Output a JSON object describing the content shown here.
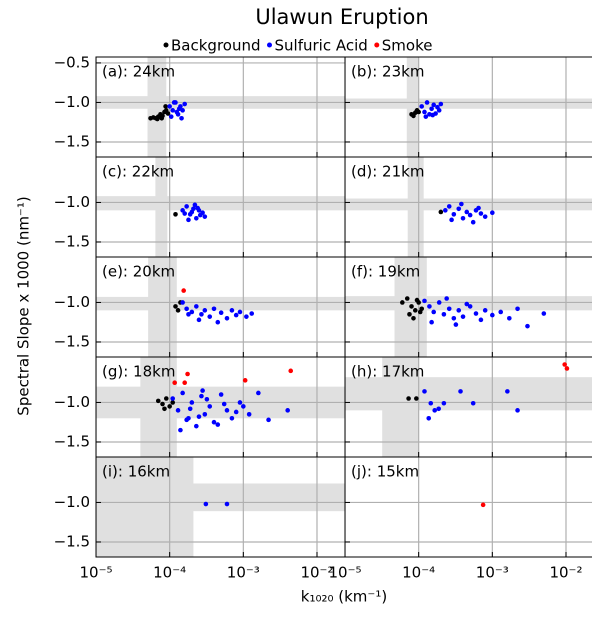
{
  "chart_data": {
    "type": "scatter",
    "title": "Ulawun Eruption",
    "xlabel": "k₁₀₂₀ (km⁻¹)",
    "ylabel": "Spectral Slope x 1000 (nm⁻¹)",
    "log_x": true,
    "grid": true,
    "xlim": [
      1e-05,
      0.024
    ],
    "xticks": [
      {
        "value": 1e-05,
        "label": "10⁻⁵"
      },
      {
        "value": 0.0001,
        "label": "10⁻⁴"
      },
      {
        "value": 0.001,
        "label": "10⁻³"
      },
      {
        "value": 0.01,
        "label": "10⁻²"
      }
    ],
    "ylim": [
      -1.69,
      -0.425
    ],
    "series": [
      {
        "name": "Background",
        "color": "#000000"
      },
      {
        "name": "Sulfuric Acid",
        "color": "#0000ff"
      },
      {
        "name": "Smoke",
        "color": "#ff0000"
      }
    ],
    "panels": [
      {
        "label": "(a): 24km",
        "yticks": [
          {
            "value": -0.5,
            "label": "−0.5"
          },
          {
            "value": -1.0,
            "label": "−1.0"
          },
          {
            "value": -1.5,
            "label": "−1.5"
          }
        ],
        "band_x": [
          5e-05,
          9e-05
        ],
        "band_y": [
          -0.92,
          -1.08
        ],
        "points": [
          {
            "x": [
              5.5e-05,
              6e-05,
              6.5e-05,
              7e-05,
              7.5e-05,
              8e-05,
              8.5e-05,
              9e-05,
              6.8e-05,
              7.8e-05,
              8.8e-05,
              9.5e-05
            ],
            "values": [
              -1.2,
              -1.19,
              -1.2,
              -1.18,
              -1.15,
              -1.17,
              -1.12,
              -1.1,
              -1.21,
              -1.2,
              -1.05,
              -1.14
            ]
          },
          {
            "x": [
              0.0001,
              0.00011,
              0.00012,
              0.00013,
              0.00014,
              0.00015,
              0.00016,
              0.000105,
              0.000125,
              0.000145,
              0.000115,
              0.000135
            ],
            "values": [
              -1.05,
              -1.1,
              -1.0,
              -1.15,
              -1.05,
              -1.1,
              -1.02,
              -1.18,
              -1.12,
              -1.2,
              -1.0,
              -1.08
            ]
          },
          {
            "x": [],
            "values": []
          }
        ]
      },
      {
        "label": "(b): 23km",
        "yticks": [
          {
            "value": -1.0,
            "label": "−1.0"
          },
          {
            "value": -1.5,
            "label": "−1.5"
          }
        ],
        "band_x": [
          6.9e-05,
          0.0001
        ],
        "band_y": [
          -0.95,
          -1.08
        ],
        "points": [
          {
            "x": [
              8e-05,
              8.5e-05,
              9e-05,
              9.5e-05,
              0.0001
            ],
            "values": [
              -1.15,
              -1.17,
              -1.13,
              -1.1,
              -1.12
            ]
          },
          {
            "x": [
              0.00011,
              0.00012,
              0.00013,
              0.00014,
              0.00015,
              0.00016,
              0.00017,
              0.00018,
              0.00019,
              0.0002,
              0.000125,
              0.000155
            ],
            "values": [
              -1.05,
              -1.12,
              -1.0,
              -1.15,
              -1.08,
              -1.03,
              -1.14,
              -1.06,
              -1.1,
              -1.02,
              -1.18,
              -1.16
            ]
          },
          {
            "x": [],
            "values": []
          }
        ]
      },
      {
        "label": "(c): 22km",
        "yticks": [
          {
            "value": -1.0,
            "label": "−1.0"
          },
          {
            "value": -1.5,
            "label": "−1.5"
          }
        ],
        "band_x": [
          6.4e-05,
          9.3e-05
        ],
        "band_y": [
          -0.92,
          -1.1
        ],
        "points": [
          {
            "x": [
              0.00012
            ],
            "values": [
              -1.15
            ]
          },
          {
            "x": [
              0.00015,
              0.00017,
              0.00019,
              0.00021,
              0.00023,
              0.00025,
              0.00028,
              0.0003,
              0.00018,
              0.00022,
              0.00026,
              0.00016,
              0.0002,
              0.00024
            ],
            "values": [
              -1.1,
              -1.05,
              -1.15,
              -1.08,
              -1.2,
              -1.1,
              -1.13,
              -1.18,
              -1.22,
              -1.03,
              -1.16,
              -1.14,
              -1.12,
              -1.07
            ]
          },
          {
            "x": [],
            "values": []
          }
        ]
      },
      {
        "label": "(d): 21km",
        "yticks": [
          {
            "value": -1.0,
            "label": "−1.0"
          },
          {
            "value": -1.5,
            "label": "−1.5"
          }
        ],
        "band_x": [
          7.1e-05,
          0.000117
        ],
        "band_y": [
          -0.95,
          -1.1
        ],
        "points": [
          {
            "x": [
              0.0002
            ],
            "values": [
              -1.12
            ]
          },
          {
            "x": [
              0.00023,
              0.00026,
              0.0003,
              0.00035,
              0.0004,
              0.00045,
              0.0005,
              0.0006,
              0.0007,
              0.0008,
              0.001,
              0.00028,
              0.00038,
              0.00055,
              0.00065
            ],
            "values": [
              -1.1,
              -1.05,
              -1.15,
              -1.08,
              -1.2,
              -1.12,
              -1.16,
              -1.1,
              -1.14,
              -1.18,
              -1.13,
              -1.22,
              -1.02,
              -1.25,
              -1.07
            ]
          },
          {
            "x": [],
            "values": []
          }
        ]
      },
      {
        "label": "(e): 20km",
        "yticks": [
          {
            "value": -1.0,
            "label": "−1.0"
          },
          {
            "value": -1.5,
            "label": "−1.5"
          }
        ],
        "band_x": [
          5.1e-05,
          0.000125
        ],
        "band_y": [
          -0.93,
          -1.1
        ],
        "points": [
          {
            "x": [
              0.00012,
              0.00013,
              0.00014
            ],
            "values": [
              -1.05,
              -1.1,
              -1.0
            ]
          },
          {
            "x": [
              0.00015,
              0.00017,
              0.0002,
              0.00023,
              0.00027,
              0.0003,
              0.00035,
              0.0004,
              0.0005,
              0.0006,
              0.0007,
              0.0008,
              0.0009,
              0.0011,
              0.0013,
              0.00025,
              0.00045,
              0.00018
            ],
            "values": [
              -1.0,
              -1.08,
              -1.12,
              -1.05,
              -1.15,
              -1.1,
              -1.18,
              -1.08,
              -1.13,
              -1.2,
              -1.1,
              -1.16,
              -1.12,
              -1.18,
              -1.14,
              -1.22,
              -1.25,
              -1.15
            ]
          },
          {
            "x": [
              0.000155
            ],
            "values": [
              -0.85
            ]
          }
        ]
      },
      {
        "label": "(f): 19km",
        "yticks": [
          {
            "value": -1.0,
            "label": "−1.0"
          },
          {
            "value": -1.5,
            "label": "−1.5"
          }
        ],
        "band_x": [
          4.7e-05,
          0.000129
        ],
        "band_y": [
          -0.92,
          -1.1
        ],
        "points": [
          {
            "x": [
              6e-05,
              7e-05,
              8e-05,
              9e-05,
              0.0001,
              0.00011,
              7.5e-05,
              8.5e-05,
              9.5e-05,
              0.000105
            ],
            "values": [
              -1.0,
              -0.95,
              -1.05,
              -1.1,
              -1.0,
              -1.08,
              -1.15,
              -1.2,
              -0.97,
              -1.12
            ]
          },
          {
            "x": [
              0.00012,
              0.00014,
              0.00016,
              0.00019,
              0.00022,
              0.00026,
              0.0003,
              0.00035,
              0.0004,
              0.0005,
              0.0006,
              0.0007,
              0.0008,
              0.001,
              0.0013,
              0.0017,
              0.0022,
              0.003,
              0.005,
              0.00015,
              0.00024,
              0.00032,
              0.00045
            ],
            "values": [
              -0.98,
              -1.05,
              -1.12,
              -1.0,
              -1.15,
              -1.08,
              -1.2,
              -1.1,
              -1.18,
              -1.05,
              -1.14,
              -1.22,
              -1.1,
              -1.16,
              -1.12,
              -1.2,
              -1.08,
              -1.3,
              -1.14,
              -1.25,
              -0.95,
              -1.28,
              -1.02
            ]
          },
          {
            "x": [],
            "values": []
          }
        ]
      },
      {
        "label": "(g): 18km",
        "yticks": [
          {
            "value": -1.0,
            "label": "−1.0"
          },
          {
            "value": -1.5,
            "label": "−1.5"
          }
        ],
        "band_x": [
          4e-05,
          0.000125
        ],
        "band_y": [
          -0.8,
          -1.2
        ],
        "points": [
          {
            "x": [
              7e-05,
              8e-05,
              9e-05,
              0.0001,
              0.00011,
              8.5e-05
            ],
            "values": [
              -0.98,
              -1.02,
              -0.95,
              -1.05,
              -1.0,
              -1.08
            ]
          },
          {
            "x": [
              0.00011,
              0.00013,
              0.00015,
              0.00018,
              0.0002,
              0.00023,
              0.00027,
              0.0003,
              0.00035,
              0.0004,
              0.0005,
              0.0006,
              0.0007,
              0.0009,
              0.0012,
              0.0016,
              0.0022,
              0.004,
              0.00014,
              0.00019,
              0.00025,
              0.00032,
              0.00045,
              0.00055,
              0.0008,
              0.001,
              0.00017,
              0.00028
            ],
            "values": [
              -0.95,
              -1.1,
              -0.88,
              -1.2,
              -1.0,
              -1.3,
              -0.92,
              -1.15,
              -1.05,
              -1.25,
              -0.9,
              -1.1,
              -1.2,
              -1.0,
              -1.15,
              -0.88,
              -1.22,
              -1.1,
              -1.35,
              -1.08,
              -1.18,
              -0.96,
              -1.28,
              -1.02,
              -1.12,
              -1.05,
              -1.22,
              -0.85
            ]
          },
          {
            "x": [
              0.000117,
              0.00016,
              0.000175,
              0.00106,
              0.0044
            ],
            "values": [
              -0.75,
              -0.75,
              -0.64,
              -0.72,
              -0.6
            ]
          }
        ]
      },
      {
        "label": "(h): 17km",
        "yticks": [
          {
            "value": -1.0,
            "label": "−1.0"
          },
          {
            "value": -1.5,
            "label": "−1.5"
          }
        ],
        "band_x": [
          3.2e-05,
          0.0001
        ],
        "band_y": [
          -0.68,
          -1.1
        ],
        "points": [
          {
            "x": [
              7.3e-05,
              9.3e-05
            ],
            "values": [
              -0.95,
              -0.95
            ]
          },
          {
            "x": [
              0.00012,
              0.000146,
              0.000187,
              0.00022,
              0.00037,
              0.00055,
              0.0016,
              0.0022,
              0.000137,
              0.000165
            ],
            "values": [
              -0.86,
              -1.01,
              -1.08,
              -1.01,
              -0.86,
              -1.01,
              -0.86,
              -1.1,
              -1.2,
              -1.1
            ]
          },
          {
            "x": [
              0.0096,
              0.0103
            ],
            "values": [
              -0.52,
              -0.57
            ]
          }
        ]
      },
      {
        "label": "(i): 16km",
        "yticks": [
          {
            "value": -1.0,
            "label": "−1.0"
          },
          {
            "value": -1.5,
            "label": "−1.5"
          }
        ],
        "band_x": [
          1e-05,
          0.00021
        ],
        "band_y": [
          -0.76,
          -1.11
        ],
        "points": [
          {
            "x": [],
            "values": []
          },
          {
            "x": [
              0.00031,
              0.0006
            ],
            "values": [
              -1.02,
              -1.02
            ]
          },
          {
            "x": [],
            "values": []
          }
        ]
      },
      {
        "label": "(j): 15km",
        "yticks": [
          {
            "value": -1.0,
            "label": "−1.0"
          },
          {
            "value": -1.5,
            "label": "−1.5"
          }
        ],
        "points": [
          {
            "x": [],
            "values": []
          },
          {
            "x": [],
            "values": []
          },
          {
            "x": [
              0.00075
            ],
            "values": [
              -1.03
            ]
          }
        ]
      }
    ]
  }
}
